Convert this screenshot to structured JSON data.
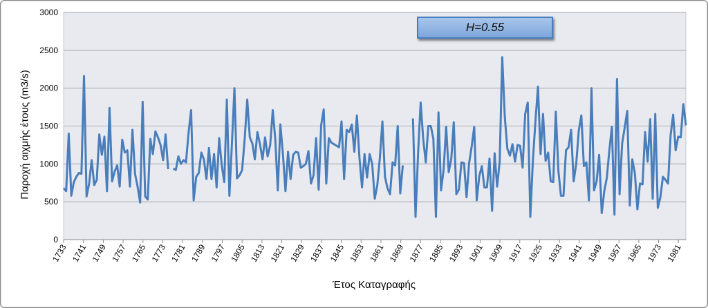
{
  "chart_data": {
    "type": "line",
    "title": "",
    "xlabel": "Έτος Καταγραφής",
    "ylabel": "Παροχή αιχμής έτους (m3/s)",
    "annotation": "H=0.55",
    "x_start": 1733,
    "x_end": 1984,
    "ylim": [
      0,
      3000
    ],
    "y_ticks": [
      "0",
      "500",
      "1000",
      "1500",
      "2000",
      "2500",
      "3000"
    ],
    "x_ticks": [
      "1733",
      "1741",
      "1749",
      "1757",
      "1765",
      "1773",
      "1781",
      "1789",
      "1797",
      "1805",
      "1813",
      "1821",
      "1829",
      "1837",
      "1845",
      "1853",
      "1861",
      "1869",
      "1877",
      "1885",
      "1893",
      "1901",
      "1909",
      "1917",
      "1925",
      "1933",
      "1941",
      "1949",
      "1957",
      "1965",
      "1973",
      "1981"
    ],
    "grid": "horizontal",
    "series_color": "#4a7ebb",
    "values": [
      680,
      640,
      1400,
      580,
      760,
      830,
      880,
      870,
      2160,
      570,
      740,
      1050,
      720,
      790,
      1390,
      1120,
      1360,
      640,
      1740,
      770,
      900,
      980,
      700,
      1320,
      1150,
      1180,
      700,
      1450,
      870,
      700,
      490,
      1820,
      570,
      530,
      1330,
      1130,
      1430,
      1350,
      1250,
      1050,
      1390,
      930,
      null,
      940,
      920,
      1100,
      1000,
      1050,
      1020,
      1410,
      1710,
      520,
      830,
      880,
      1150,
      1060,
      800,
      1210,
      800,
      1130,
      690,
      1340,
      980,
      760,
      1850,
      580,
      1260,
      2000,
      810,
      850,
      920,
      1330,
      1850,
      1350,
      1270,
      1060,
      1420,
      1260,
      1060,
      1350,
      1100,
      1250,
      1710,
      1330,
      650,
      1520,
      1130,
      640,
      1160,
      800,
      1120,
      1160,
      1150,
      950,
      970,
      1000,
      1170,
      740,
      850,
      1340,
      660,
      1510,
      1720,
      740,
      1340,
      1280,
      1260,
      1240,
      1220,
      1560,
      800,
      1450,
      1420,
      1520,
      1160,
      1640,
      1080,
      690,
      1130,
      820,
      1130,
      1000,
      540,
      720,
      1080,
      1560,
      830,
      680,
      600,
      1020,
      980,
      1500,
      610,
      980,
      null,
      null,
      null,
      1600,
      300,
      1140,
      1810,
      1330,
      1020,
      1500,
      1500,
      1330,
      300,
      1680,
      650,
      920,
      1490,
      890,
      1070,
      1550,
      600,
      660,
      1020,
      1010,
      560,
      1010,
      1230,
      1490,
      520,
      840,
      970,
      690,
      690,
      1070,
      380,
      1140,
      700,
      1030,
      2410,
      1620,
      1200,
      1110,
      1260,
      1030,
      1250,
      1240,
      950,
      1660,
      1810,
      300,
      1040,
      1560,
      2020,
      1130,
      1660,
      1040,
      1150,
      770,
      760,
      1690,
      910,
      580,
      580,
      1180,
      1220,
      1450,
      770,
      1000,
      1440,
      1640,
      970,
      1020,
      520,
      2000,
      650,
      770,
      1120,
      350,
      640,
      820,
      1180,
      1490,
      330,
      2120,
      600,
      1270,
      1480,
      1700,
      450,
      1060,
      880,
      400,
      740,
      730,
      1420,
      1030,
      1590,
      540,
      1660,
      420,
      560,
      830,
      790,
      740,
      1380,
      1650,
      1180,
      1360,
      1350,
      1790,
      1510
    ]
  }
}
